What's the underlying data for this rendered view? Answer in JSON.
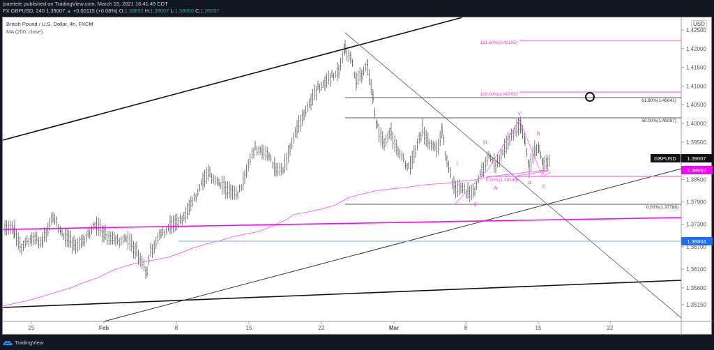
{
  "header": {
    "publisher_line": "jsaettele published on TradingView.com, March 15, 2021 16:41:49 CDT",
    "symbol_interval": "FX:GBPUSD, 240",
    "last": "1.39007",
    "change": "+0.00115 (+0.08%)",
    "o_label": "O:",
    "o": "1.38892",
    "h_label": "H:",
    "h": "1.39007",
    "l_label": "L:",
    "l": "1.38850",
    "c_label": "C:",
    "c": "1.39007"
  },
  "legend": {
    "title": "British Pound / U.S. Dollar, 4h, FXCM",
    "indicator": "MA (200, close)"
  },
  "price_axis": {
    "currency": "USD",
    "ticks": [
      "1.42500",
      "1.42000",
      "1.41500",
      "1.41000",
      "1.40500",
      "1.40000",
      "1.39500",
      "1.38500",
      "1.37900",
      "1.37300",
      "1.36700",
      "1.36100",
      "1.35600",
      "1.35150"
    ],
    "labels": {
      "symbol": "GBPUSD",
      "last_price": "1.39007",
      "ma_value": "1.38692",
      "level_blue": "1.36804"
    }
  },
  "time_axis": {
    "ticks": [
      "25",
      "Feb",
      "8",
      "15",
      "22",
      "Mar",
      "8",
      "15",
      "22"
    ]
  },
  "fib_labels": {
    "ext_161": "161.80%(1.42195)",
    "ext_100": "100.00%(1.40795)",
    "ret_618": "61.80%(1.40641)",
    "ret_50": "50.00%(1.40097)",
    "ret_0": "0.00%(1.37788)",
    "ext_0": "0.00%(1.38530)"
  },
  "wave_labels": {
    "i": "i",
    "ii": "ii",
    "iii": "iii",
    "iv": "iv",
    "v": "v",
    "a": "a",
    "b": "b",
    "c": "c"
  },
  "colors": {
    "bar": "#555555",
    "ma": "#ff66ff",
    "magenta": "#ff00ff",
    "blue_level": "#1e6ff2",
    "fib_pink": "#ff33cc",
    "trend": "#111111",
    "background": "#ffffff",
    "frame": "#131722"
  },
  "footer": {
    "brand": "TradingView"
  },
  "chart_data": {
    "type": "ohlc",
    "title": "British Pound / U.S. Dollar, 4h, FXCM",
    "symbol": "FX:GBPUSD",
    "interval": "240 (4h)",
    "xlabel": "",
    "ylabel": "USD",
    "ylim": [
      1.349,
      1.428
    ],
    "x_ticks": [
      "25",
      "Feb",
      "8",
      "15",
      "22",
      "Mar",
      "8",
      "15",
      "22"
    ],
    "y_ticks": [
      1.425,
      1.42,
      1.415,
      1.41,
      1.405,
      1.4,
      1.395,
      1.385,
      1.379,
      1.373,
      1.367,
      1.361,
      1.356,
      1.3515
    ],
    "grid": false,
    "last_price": 1.39007,
    "ohlc_last": {
      "open": 1.38892,
      "high": 1.39007,
      "low": 1.3885,
      "close": 1.39007
    },
    "ma200_last": 1.38692,
    "approx_swing_points": [
      {
        "date": "Jan 22",
        "price": 1.372
      },
      {
        "date": "Jan 25",
        "price": 1.368
      },
      {
        "date": "Jan 28",
        "price": 1.374
      },
      {
        "date": "Feb 4",
        "price": 1.357
      },
      {
        "date": "Feb 8",
        "price": 1.371
      },
      {
        "date": "Feb 16",
        "price": 1.395
      },
      {
        "date": "Feb 19",
        "price": 1.385
      },
      {
        "date": "Feb 24",
        "price": 1.4237
      },
      {
        "date": "Feb 26",
        "price": 1.39
      },
      {
        "date": "Mar 5",
        "price": 1.386
      },
      {
        "date": "Mar 6",
        "price": 1.4018
      },
      {
        "date": "Mar 8",
        "price": 1.3779
      },
      {
        "date": "Mar 12",
        "price": 1.4
      },
      {
        "date": "Mar 15",
        "price": 1.3853
      },
      {
        "date": "Mar 15 last",
        "price": 1.39007
      }
    ],
    "levels": [
      {
        "name": "Fib ext 161.8%",
        "price": 1.42195
      },
      {
        "name": "Fib ext 100%",
        "price": 1.40795
      },
      {
        "name": "Fib ret 61.8%",
        "price": 1.40641
      },
      {
        "name": "Fib ret 50%",
        "price": 1.40097
      },
      {
        "name": "Fib ext 0%",
        "price": 1.3853
      },
      {
        "name": "Fib ret 0%",
        "price": 1.37788
      },
      {
        "name": "Horizontal support (blue)",
        "price": 1.36804
      }
    ],
    "annotations": [
      "Elliott wave labels i, ii, iii, iv, v, a, b, c",
      "Target circle near 1.4064 around Mar 19",
      "Trendlines: upper channel, lower channel, descending line from Feb 24 high, rising line from Feb 1, magenta near-horizontal line ~1.373"
    ],
    "legend": [
      "MA (200, close)"
    ]
  }
}
